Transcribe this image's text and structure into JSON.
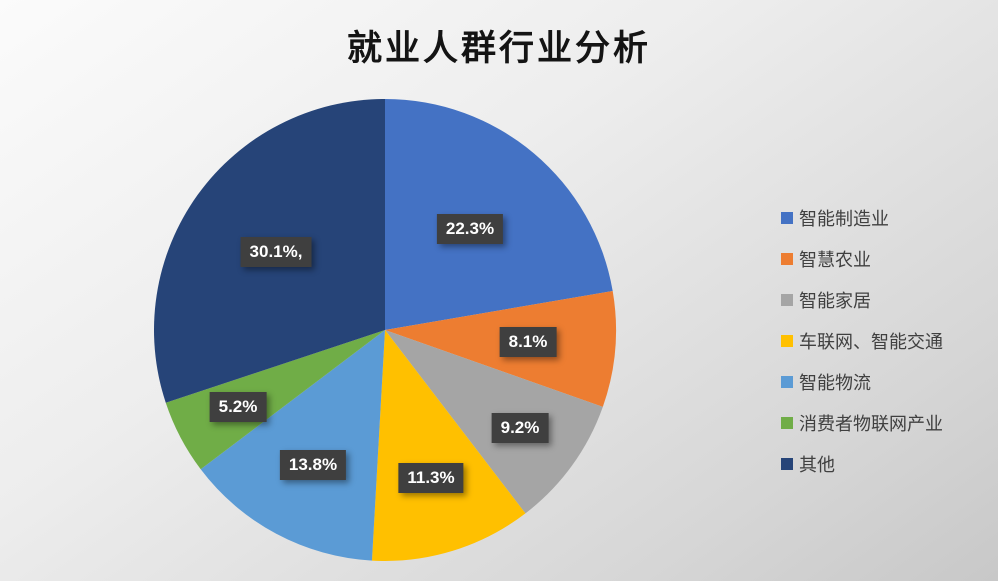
{
  "chart_data": {
    "type": "pie",
    "title": "就业人群行业分析",
    "categories": [
      "智能制造业",
      "智慧农业",
      "智能家居",
      "车联网、智能交通",
      "智能物流",
      "消费者物联网产业",
      "其他"
    ],
    "values": [
      22.3,
      8.1,
      9.2,
      11.3,
      13.8,
      5.2,
      30.1
    ],
    "data_labels": [
      "22.3%",
      "8.1%",
      "9.2%",
      "11.3%",
      "13.8%",
      "5.2%",
      "30.1%,"
    ],
    "colors": [
      "#4472C4",
      "#ED7D31",
      "#A5A5A5",
      "#FFC000",
      "#5B9BD5",
      "#70AD47",
      "#264478"
    ],
    "start_angle_deg": 0,
    "direction": "clockwise",
    "legend_position": "right",
    "data_label_style": {
      "background": "#3F3F3F",
      "text_color": "#FFFFFF"
    },
    "title_color": "#141414",
    "background": "light-gray-gradient"
  }
}
